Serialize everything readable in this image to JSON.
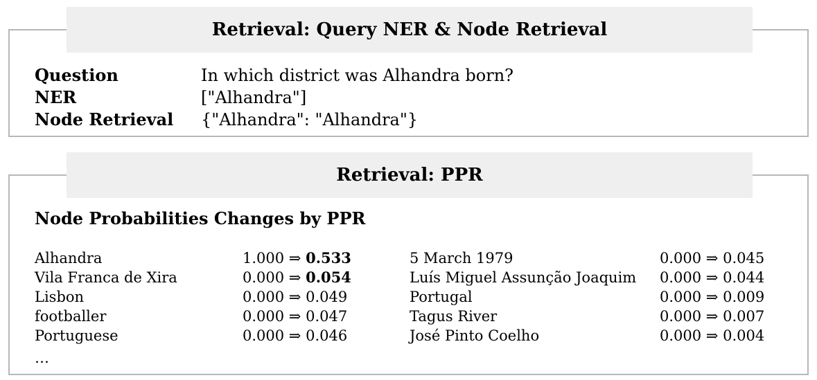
{
  "panel1": {
    "title": "Retrieval: Query NER & Node Retrieval",
    "question_label": "Question",
    "question_value": "In which district was Alhandra born?",
    "ner_label": "NER",
    "ner_value": "[\"Alhandra\"]",
    "node_retrieval_label": "Node Retrieval",
    "node_retrieval_value": "{\"Alhandra\": \"Alhandra\"}"
  },
  "panel2": {
    "title": "Retrieval: PPR",
    "subtitle": "Node Probabilities Changes by PPR",
    "arrow": "⇒",
    "left": [
      {
        "node": "Alhandra",
        "before": "1.000",
        "after": "0.533",
        "bold": true
      },
      {
        "node": "Vila Franca de Xira",
        "before": "0.000",
        "after": "0.054",
        "bold": true
      },
      {
        "node": "Lisbon",
        "before": "0.000",
        "after": "0.049",
        "bold": false
      },
      {
        "node": "footballer",
        "before": "0.000",
        "after": "0.047",
        "bold": false
      },
      {
        "node": "Portuguese",
        "before": "0.000",
        "after": "0.046",
        "bold": false
      }
    ],
    "right": [
      {
        "node": "5 March 1979",
        "before": "0.000",
        "after": "0.045",
        "bold": false
      },
      {
        "node": "Luís Miguel Assunção Joaquim",
        "before": "0.000",
        "after": "0.044",
        "bold": false
      },
      {
        "node": "Portugal",
        "before": "0.000",
        "after": "0.009",
        "bold": false
      },
      {
        "node": "Tagus River",
        "before": "0.000",
        "after": "0.007",
        "bold": false
      },
      {
        "node": "José Pinto Coelho",
        "before": "0.000",
        "after": "0.004",
        "bold": false
      }
    ],
    "ellipsis": "…"
  }
}
